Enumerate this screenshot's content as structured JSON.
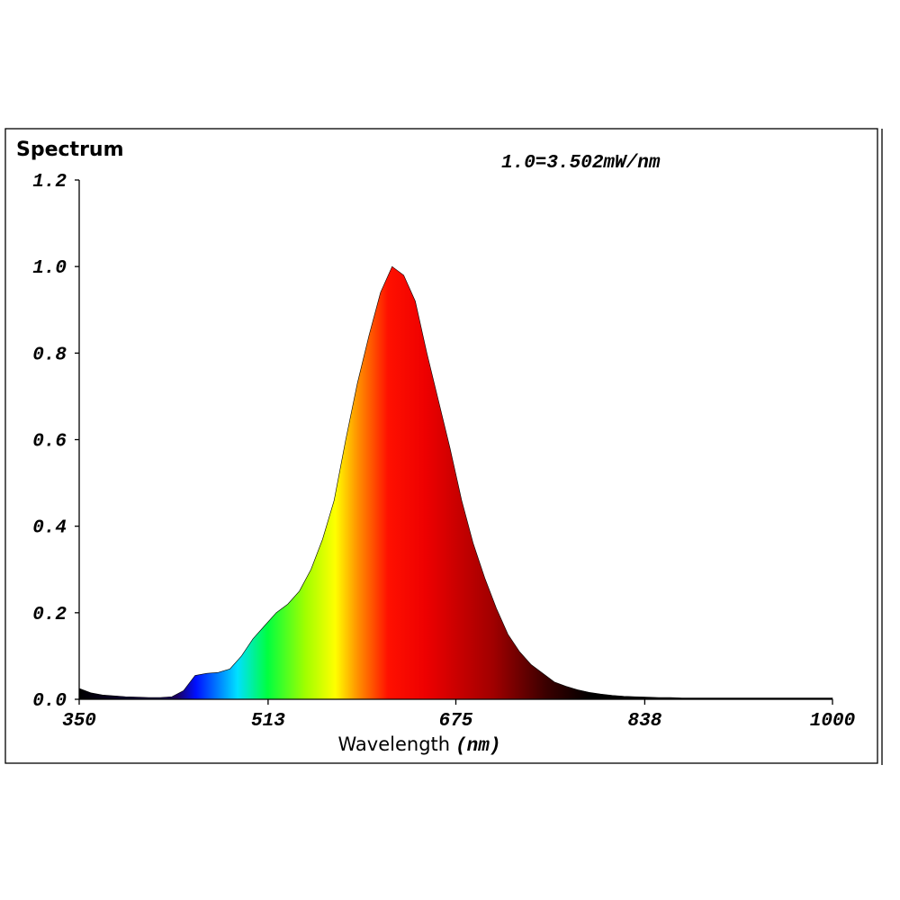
{
  "chart_data": {
    "type": "area",
    "title": "Spectrum",
    "annotation": "1.0=3.502mW/nm",
    "x_label": "Wavelength",
    "x_unit": "(nm)",
    "xlim": [
      350,
      1000
    ],
    "xticks": [
      350,
      513,
      675,
      838,
      1000
    ],
    "ylim": [
      0,
      1.2
    ],
    "yticks": [
      {
        "value": 0,
        "label": "0.0"
      },
      0.2,
      0.4,
      0.6,
      0.8,
      {
        "value": 1,
        "label": "1.0"
      },
      1.2
    ],
    "x": [
      350,
      360,
      370,
      380,
      390,
      400,
      410,
      420,
      430,
      440,
      450,
      460,
      470,
      480,
      490,
      500,
      510,
      520,
      530,
      540,
      550,
      560,
      570,
      580,
      590,
      600,
      610,
      620,
      630,
      640,
      650,
      660,
      670,
      680,
      690,
      700,
      710,
      720,
      730,
      740,
      750,
      760,
      770,
      780,
      790,
      800,
      810,
      820,
      830,
      840,
      850,
      860,
      870,
      880,
      890,
      900,
      910,
      920,
      930,
      940,
      950,
      960,
      970,
      980,
      990,
      1000
    ],
    "values": [
      0.025,
      0.015,
      0.01,
      0.008,
      0.006,
      0.005,
      0.004,
      0.004,
      0.006,
      0.02,
      0.055,
      0.06,
      0.062,
      0.07,
      0.1,
      0.14,
      0.17,
      0.2,
      0.22,
      0.25,
      0.3,
      0.37,
      0.46,
      0.6,
      0.73,
      0.84,
      0.94,
      1.0,
      0.98,
      0.92,
      0.8,
      0.69,
      0.58,
      0.46,
      0.36,
      0.28,
      0.21,
      0.15,
      0.11,
      0.08,
      0.06,
      0.04,
      0.03,
      0.022,
      0.016,
      0.012,
      0.009,
      0.007,
      0.006,
      0.005,
      0.004,
      0.004,
      0.003,
      0.003,
      0.003,
      0.003,
      0.003,
      0.003,
      0.003,
      0.003,
      0.003,
      0.003,
      0.003,
      0.003,
      0.003,
      0.003
    ]
  }
}
